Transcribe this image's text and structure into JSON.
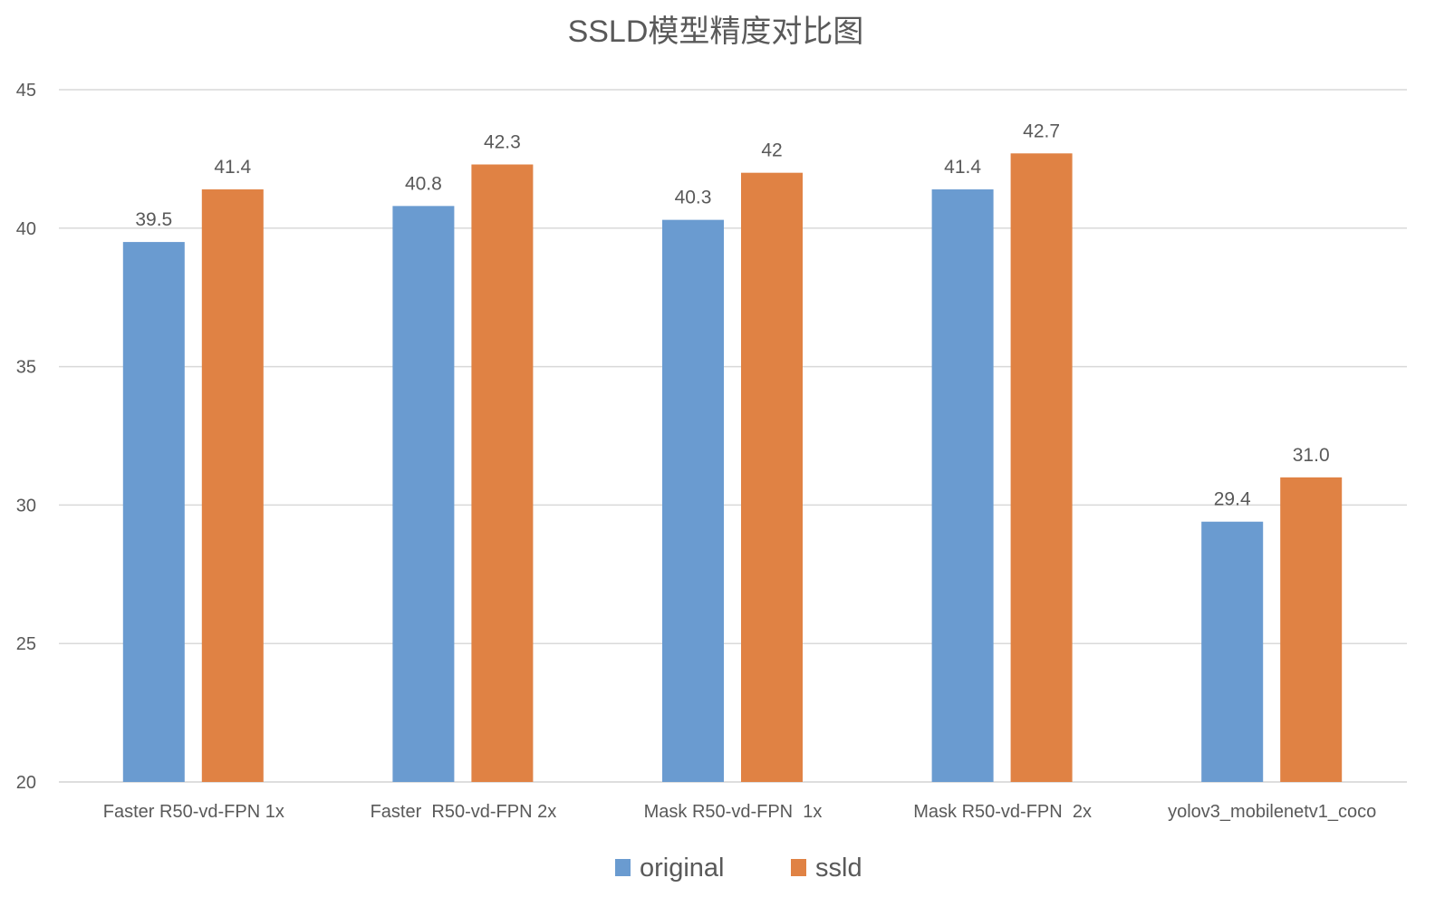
{
  "chart_data": {
    "type": "bar",
    "title": "SSLD模型精度对比图",
    "xlabel": "",
    "ylabel": "",
    "ylim": [
      20,
      45
    ],
    "yticks": [
      20,
      25,
      30,
      35,
      40,
      45
    ],
    "grid": true,
    "legend_position": "bottom",
    "categories": [
      "Faster R50-vd-FPN 1x",
      "Faster  R50-vd-FPN 2x",
      "Mask R50-vd-FPN  1x",
      "Mask R50-vd-FPN  2x",
      "yolov3_mobilenetv1_coco"
    ],
    "series": [
      {
        "name": "original",
        "color": "#6a9bd0",
        "values": [
          39.5,
          40.8,
          40.3,
          41.4,
          29.4
        ],
        "labels": [
          "39.5",
          "40.8",
          "40.3",
          "41.4",
          "29.4"
        ]
      },
      {
        "name": "ssld",
        "color": "#e08244",
        "values": [
          41.4,
          42.3,
          42,
          42.7,
          31.0
        ],
        "labels": [
          "41.4",
          "42.3",
          "42",
          "42.7",
          "31.0"
        ]
      }
    ]
  }
}
